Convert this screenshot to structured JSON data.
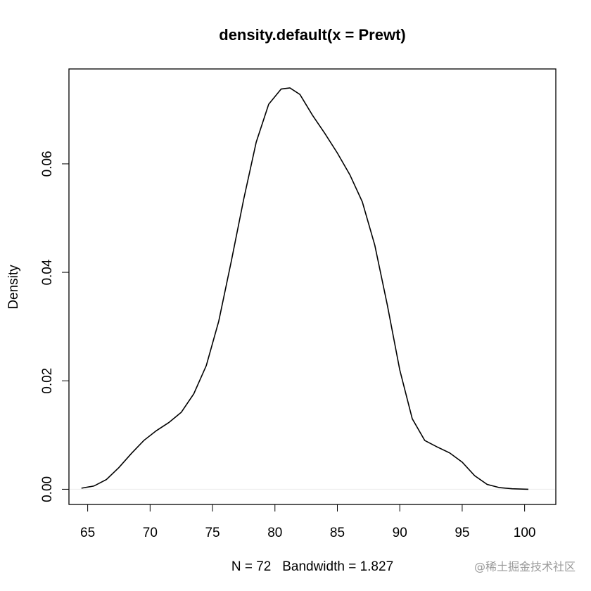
{
  "chart_data": {
    "type": "line",
    "title": "density.default(x = Prewt)",
    "xlabel": "N = 72   Bandwidth = 1.827",
    "ylabel": "Density",
    "xlim": [
      63.5,
      102.5
    ],
    "ylim": [
      -0.0028,
      0.0775
    ],
    "x_ticks": [
      65,
      70,
      75,
      80,
      85,
      90,
      95,
      100
    ],
    "y_ticks": [
      0.0,
      0.02,
      0.04,
      0.06
    ],
    "x_tick_labels": [
      "65",
      "70",
      "75",
      "80",
      "85",
      "90",
      "95",
      "100"
    ],
    "y_tick_labels": [
      "0.00",
      "0.02",
      "0.04",
      "0.06"
    ],
    "grid": false,
    "zero_line_color": "#ececec",
    "line_color": "#000000",
    "series": [
      {
        "x": [
          64.5,
          65.5,
          66.5,
          67.5,
          68.5,
          69.5,
          70.5,
          71.5,
          72.5,
          73.5,
          74.5,
          75.5,
          76.5,
          77.5,
          78.5,
          79.5,
          80.5,
          81.2,
          82.0,
          83.0,
          84.0,
          85.0,
          86.0,
          87.0,
          88.0,
          89.0,
          90.0,
          91.0,
          92.0,
          93.0,
          94.0,
          95.0,
          96.0,
          97.0,
          98.0,
          99.0,
          100.3
        ],
        "y": [
          0.0002,
          0.0006,
          0.0018,
          0.004,
          0.0066,
          0.009,
          0.0108,
          0.0123,
          0.0142,
          0.0176,
          0.0228,
          0.031,
          0.042,
          0.0535,
          0.064,
          0.071,
          0.0738,
          0.074,
          0.0728,
          0.069,
          0.0656,
          0.062,
          0.058,
          0.053,
          0.045,
          0.034,
          0.022,
          0.013,
          0.009,
          0.0078,
          0.0067,
          0.005,
          0.0025,
          0.0009,
          0.0003,
          0.0001,
          0.0
        ]
      }
    ]
  },
  "watermark": "@稀土掘金技术社区"
}
